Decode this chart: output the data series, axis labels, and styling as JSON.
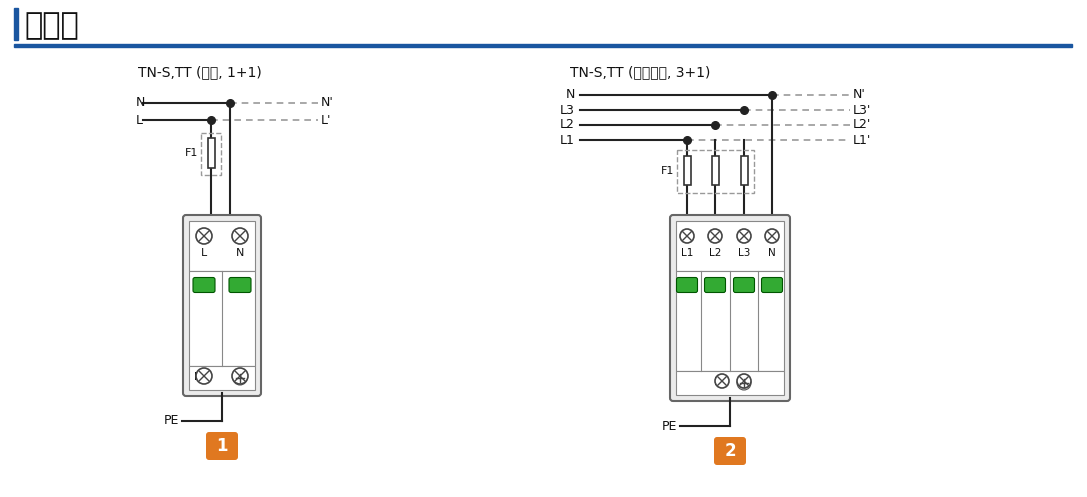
{
  "title": "接线图",
  "title_bar_color": "#1a56a0",
  "bg_color": "#ffffff",
  "diagram1_title": "TN-S,TT (单相, 1+1)",
  "diagram2_title": "TN-S,TT (三相四线, 3+1)",
  "label1": "1",
  "label2": "2",
  "label_bg": "#e07820",
  "line_color": "#222222",
  "dash_color": "#999999",
  "device_bg": "#ebebeb",
  "device_border": "#555555",
  "green_indicator": "#33aa33",
  "fuse_dash_color": "#999999"
}
